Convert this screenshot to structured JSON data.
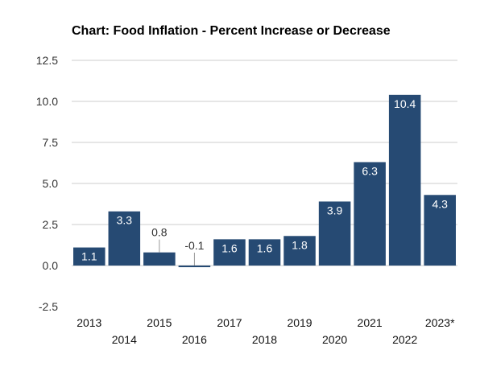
{
  "chart_data": {
    "type": "bar",
    "title": "Chart: Food Inflation - Percent Increase or Decrease",
    "xlabel": "",
    "ylabel": "",
    "categories": [
      "2013",
      "2014",
      "2015",
      "2016",
      "2017",
      "2018",
      "2019",
      "2020",
      "2021",
      "2022",
      "2023*"
    ],
    "values": [
      1.1,
      3.3,
      0.8,
      -0.1,
      1.6,
      1.6,
      1.8,
      3.9,
      6.3,
      10.4,
      4.3
    ],
    "data_labels": [
      "1.1",
      "3.3",
      "0.8",
      "-0.1",
      "1.6",
      "1.6",
      "1.8",
      "3.9",
      "6.3",
      "10.4",
      "4.3"
    ],
    "yticks": [
      "-2.5",
      "0.0",
      "2.5",
      "5.0",
      "7.5",
      "10.0",
      "12.5"
    ],
    "ytick_values": [
      -2.5,
      0,
      2.5,
      5,
      7.5,
      10,
      12.5
    ],
    "ylim": [
      -2.5,
      12.5
    ],
    "grid": true,
    "legend": "none",
    "colors": {
      "bar": "#264a73",
      "label_inside": "#ffffff",
      "label_outside": "#333333",
      "grid": "#cccccc"
    }
  }
}
